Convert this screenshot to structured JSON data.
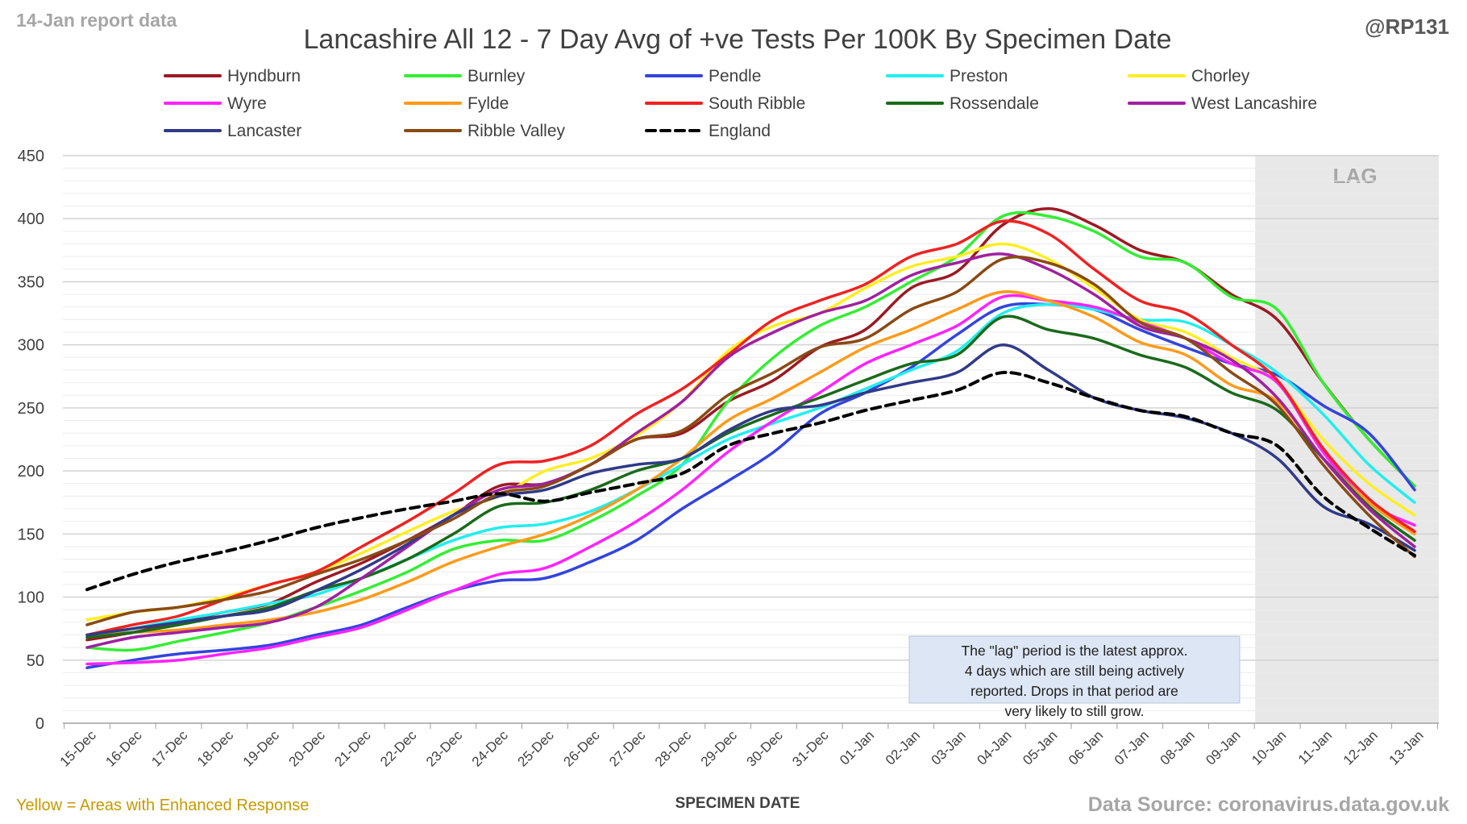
{
  "header": {
    "report_tag": "14-Jan report data",
    "handle": "@RP131"
  },
  "footer": {
    "enhanced_note": "Yellow = Areas with Enhanced Response",
    "source": "Data Source: coronavirus.data.gov.uk"
  },
  "colors": {
    "Hyndburn": "#9b1a23",
    "Burnley": "#33ee33",
    "Pendle": "#3344dd",
    "Preston": "#22eeee",
    "Chorley": "#ffee22",
    "Wyre": "#ff22ff",
    "Fylde": "#ff9a1a",
    "South Ribble": "#ee2222",
    "Rossendale": "#1a6a1a",
    "West Lancashire": "#a020a0",
    "Lancaster": "#303a88",
    "Ribble Valley": "#8a4a14",
    "England": "#000000",
    "lag_band": "#e8e8e8",
    "annotation_bg": "#dde6f4"
  },
  "chart_data": {
    "type": "line",
    "title": "Lancashire All 12 - 7 Day Avg of +ve Tests Per 100K By Specimen Date",
    "xlabel": "SPECIMEN DATE",
    "ylabel": "",
    "ylim": [
      0,
      450
    ],
    "yticks": [
      0,
      50,
      100,
      150,
      200,
      250,
      300,
      350,
      400,
      450
    ],
    "grid": true,
    "legend_position": "top",
    "categories": [
      "15-Dec",
      "16-Dec",
      "17-Dec",
      "18-Dec",
      "19-Dec",
      "20-Dec",
      "21-Dec",
      "22-Dec",
      "23-Dec",
      "24-Dec",
      "25-Dec",
      "26-Dec",
      "27-Dec",
      "28-Dec",
      "29-Dec",
      "30-Dec",
      "31-Dec",
      "01-Jan",
      "02-Jan",
      "03-Jan",
      "04-Jan",
      "05-Jan",
      "06-Jan",
      "07-Jan",
      "08-Jan",
      "09-Jan",
      "10-Jan",
      "11-Jan",
      "12-Jan",
      "13-Jan"
    ],
    "lag_region": {
      "label": "LAG",
      "start": "10-Jan",
      "end": "13-Jan"
    },
    "annotation": "The \"lag\" period is the latest approx. 4 days which are still being actively reported.  Drops in that period are very likely to still grow.",
    "series": [
      {
        "name": "Hyndburn",
        "values": [
          66,
          72,
          80,
          88,
          95,
          112,
          127,
          145,
          165,
          188,
          190,
          205,
          225,
          230,
          255,
          272,
          298,
          312,
          345,
          358,
          395,
          408,
          395,
          375,
          365,
          340,
          320,
          270,
          225,
          188
        ]
      },
      {
        "name": "Burnley",
        "values": [
          60,
          58,
          65,
          72,
          80,
          92,
          105,
          120,
          138,
          145,
          145,
          160,
          180,
          205,
          255,
          290,
          315,
          330,
          350,
          370,
          402,
          402,
          390,
          370,
          365,
          338,
          328,
          270,
          225,
          188
        ]
      },
      {
        "name": "Pendle",
        "values": [
          44,
          50,
          55,
          58,
          62,
          70,
          78,
          92,
          105,
          113,
          115,
          128,
          145,
          170,
          192,
          215,
          245,
          262,
          282,
          308,
          330,
          332,
          328,
          312,
          298,
          285,
          276,
          252,
          230,
          185
        ]
      },
      {
        "name": "Preston",
        "values": [
          68,
          75,
          82,
          88,
          95,
          102,
          115,
          130,
          145,
          155,
          158,
          168,
          185,
          205,
          225,
          238,
          250,
          265,
          280,
          295,
          325,
          332,
          328,
          320,
          318,
          300,
          278,
          245,
          205,
          175
        ]
      },
      {
        "name": "Chorley",
        "values": [
          82,
          88,
          92,
          100,
          110,
          120,
          135,
          152,
          168,
          180,
          200,
          210,
          228,
          255,
          295,
          315,
          325,
          345,
          362,
          370,
          380,
          368,
          345,
          320,
          310,
          290,
          270,
          225,
          190,
          165
        ]
      },
      {
        "name": "Wyre",
        "values": [
          47,
          48,
          50,
          55,
          60,
          68,
          76,
          90,
          105,
          118,
          123,
          140,
          160,
          185,
          215,
          240,
          262,
          285,
          300,
          315,
          338,
          335,
          330,
          318,
          305,
          285,
          270,
          215,
          175,
          157
        ]
      },
      {
        "name": "Fylde",
        "values": [
          70,
          72,
          74,
          78,
          82,
          88,
          98,
          112,
          128,
          140,
          150,
          165,
          185,
          210,
          240,
          258,
          278,
          298,
          312,
          328,
          342,
          335,
          322,
          302,
          292,
          268,
          255,
          210,
          175,
          150
        ]
      },
      {
        "name": "South Ribble",
        "values": [
          70,
          78,
          85,
          98,
          110,
          120,
          140,
          160,
          182,
          205,
          208,
          220,
          245,
          265,
          292,
          320,
          335,
          348,
          370,
          380,
          398,
          388,
          360,
          335,
          325,
          300,
          272,
          218,
          178,
          152
        ]
      },
      {
        "name": "Rossendale",
        "values": [
          68,
          72,
          78,
          85,
          92,
          105,
          115,
          130,
          150,
          172,
          175,
          185,
          200,
          210,
          230,
          245,
          258,
          272,
          285,
          292,
          322,
          312,
          305,
          292,
          282,
          262,
          248,
          210,
          172,
          145
        ]
      },
      {
        "name": "West Lancashire",
        "values": [
          60,
          68,
          72,
          76,
          80,
          92,
          115,
          140,
          165,
          185,
          190,
          205,
          230,
          255,
          290,
          310,
          325,
          335,
          355,
          365,
          372,
          360,
          340,
          315,
          305,
          288,
          258,
          210,
          170,
          140
        ]
      },
      {
        "name": "Lancaster",
        "values": [
          70,
          75,
          80,
          85,
          90,
          105,
          122,
          142,
          165,
          180,
          185,
          198,
          205,
          210,
          232,
          248,
          252,
          262,
          270,
          278,
          300,
          280,
          258,
          248,
          242,
          230,
          210,
          172,
          158,
          137
        ]
      },
      {
        "name": "Ribble Valley",
        "values": [
          78,
          88,
          92,
          98,
          105,
          118,
          130,
          145,
          162,
          182,
          188,
          205,
          225,
          232,
          260,
          278,
          298,
          305,
          328,
          342,
          368,
          365,
          348,
          318,
          305,
          278,
          252,
          205,
          165,
          132
        ]
      },
      {
        "name": "England",
        "values": [
          106,
          118,
          128,
          136,
          145,
          155,
          163,
          170,
          176,
          182,
          176,
          183,
          190,
          198,
          220,
          230,
          238,
          248,
          256,
          264,
          278,
          270,
          258,
          248,
          243,
          230,
          220,
          180,
          155,
          133
        ]
      }
    ]
  }
}
